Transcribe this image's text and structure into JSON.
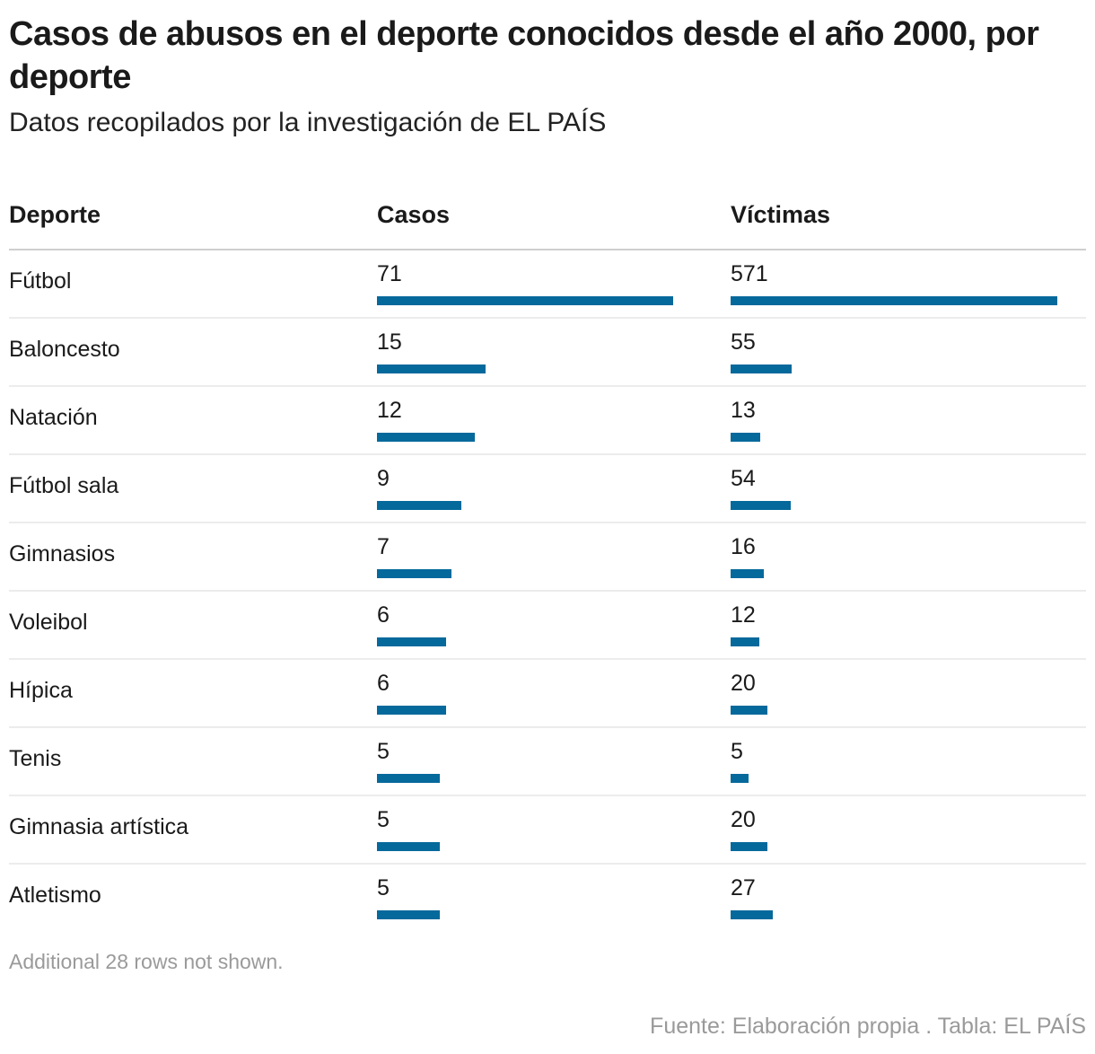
{
  "title": "Casos de abusos en el deporte conocidos desde el año 2000, por deporte",
  "subtitle": "Datos recopilados por la investigación de EL PAÍS",
  "columns": {
    "deporte": "Deporte",
    "casos": "Casos",
    "victimas": "Víctimas"
  },
  "note": "Additional 28 rows not shown.",
  "source": "Fuente: Elaboración propia . Tabla: EL PAÍS",
  "colors": {
    "bar": "#06699b"
  },
  "chart_data": {
    "type": "table",
    "title": "Casos de abusos en el deporte conocidos desde el año 2000, por deporte",
    "subtitle": "Datos recopilados por la investigación de EL PAÍS",
    "columns": [
      "Deporte",
      "Casos",
      "Víctimas"
    ],
    "rows": [
      {
        "deporte": "Fútbol",
        "casos": 71,
        "victimas": 571
      },
      {
        "deporte": "Baloncesto",
        "casos": 15,
        "victimas": 55
      },
      {
        "deporte": "Natación",
        "casos": 12,
        "victimas": 13
      },
      {
        "deporte": "Fútbol sala",
        "casos": 9,
        "victimas": 54
      },
      {
        "deporte": "Gimnasios",
        "casos": 7,
        "victimas": 16
      },
      {
        "deporte": "Voleibol",
        "casos": 6,
        "victimas": 12
      },
      {
        "deporte": "Hípica",
        "casos": 6,
        "victimas": 20
      },
      {
        "deporte": "Tenis",
        "casos": 5,
        "victimas": 5
      },
      {
        "deporte": "Gimnasia artística",
        "casos": 5,
        "victimas": 20
      },
      {
        "deporte": "Atletismo",
        "casos": 5,
        "victimas": 27
      }
    ],
    "casos_max": 71,
    "victimas_max": 571
  }
}
